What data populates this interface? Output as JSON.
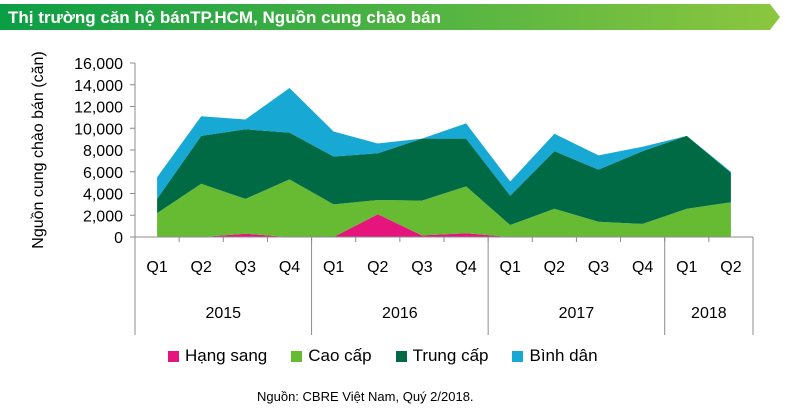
{
  "header": {
    "title": "Thị trường căn hộ bánTP.HCM, Nguồn cung chào bán",
    "colors": {
      "start": "#0a9e45",
      "end": "#8cc63f"
    }
  },
  "chart_data": {
    "type": "area",
    "stacked": true,
    "ylabel": "Nguồn cung chào bán (căn)",
    "ylim": [
      0,
      16000
    ],
    "yticks": [
      0,
      2000,
      4000,
      6000,
      8000,
      10000,
      12000,
      14000,
      16000
    ],
    "ytick_labels": [
      "0",
      "2,000",
      "4,000",
      "6,000",
      "8,000",
      "10,000",
      "12,000",
      "14,000",
      "16,000"
    ],
    "categories": [
      "Q1",
      "Q2",
      "Q3",
      "Q4",
      "Q1",
      "Q2",
      "Q3",
      "Q4",
      "Q1",
      "Q2",
      "Q3",
      "Q4",
      "Q1",
      "Q2"
    ],
    "groups": [
      {
        "label": "2015",
        "count": 4
      },
      {
        "label": "2016",
        "count": 4
      },
      {
        "label": "2017",
        "count": 4
      },
      {
        "label": "2018",
        "count": 2
      }
    ],
    "series": [
      {
        "name": "Hạng sang",
        "color": "#e6157e",
        "values": [
          0,
          0,
          300,
          0,
          0,
          2100,
          150,
          350,
          0,
          0,
          0,
          0,
          0,
          0
        ]
      },
      {
        "name": "Cao cấp",
        "color": "#66bb33",
        "values": [
          2200,
          4900,
          3200,
          5300,
          3000,
          1300,
          3200,
          4300,
          1100,
          2600,
          1400,
          1200,
          2600,
          3200
        ]
      },
      {
        "name": "Trung cấp",
        "color": "#006a45",
        "values": [
          1300,
          4400,
          6400,
          4300,
          4400,
          4300,
          5700,
          4400,
          2700,
          5300,
          4800,
          6700,
          6700,
          2700
        ]
      },
      {
        "name": "Bình dân",
        "color": "#17a8d4",
        "values": [
          2000,
          1800,
          900,
          4100,
          2300,
          900,
          0,
          1400,
          1300,
          1600,
          1300,
          400,
          0,
          100
        ]
      }
    ],
    "legend_position": "bottom"
  },
  "footer": {
    "source": "Nguồn: CBRE Việt Nam, Quý 2/2018."
  }
}
